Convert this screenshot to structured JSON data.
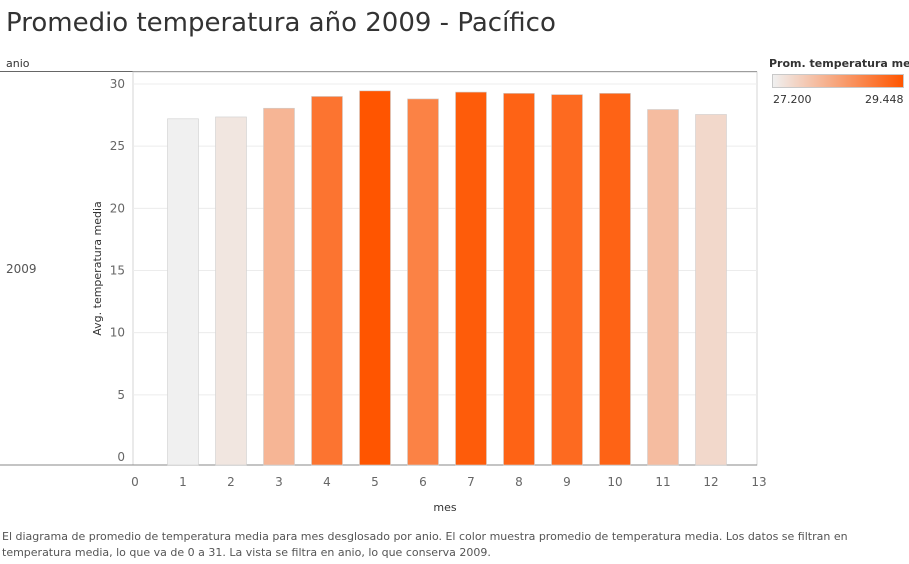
{
  "title": "Promedio temperatura año 2009 - Pacífico",
  "row_header": "anio",
  "row_label": "2009",
  "legend": {
    "title": "Prom. temperatura me..",
    "min_label": "27.200",
    "max_label": "29.448",
    "color_low": "#f0f0f0",
    "color_high": "#ff5500"
  },
  "footnote": "El diagrama de promedio de temperatura media para mes desglosado por anio.  El color muestra promedio de temperatura media. Los datos se filtran en temperatura media, lo que va de 0 a 31. La vista se filtra en anio, lo que conserva 2009.",
  "chart_data": {
    "type": "bar",
    "x": [
      1,
      2,
      3,
      4,
      5,
      6,
      7,
      8,
      9,
      10,
      11,
      12
    ],
    "values": [
      27.2,
      27.35,
      28.05,
      29.0,
      29.448,
      28.8,
      29.35,
      29.25,
      29.15,
      29.25,
      27.95,
      27.55
    ],
    "xlabel": "mes",
    "ylabel": "Avg. temperatura media",
    "xlim": [
      0,
      13
    ],
    "ylim": [
      0,
      30
    ],
    "xticks": [
      0,
      1,
      2,
      3,
      4,
      5,
      6,
      7,
      8,
      9,
      10,
      11,
      12,
      13
    ],
    "yticks": [
      0,
      5,
      10,
      15,
      20,
      25,
      30
    ],
    "color_min": 27.2,
    "color_max": 29.448,
    "grid": true,
    "legend_position": "top-right"
  }
}
